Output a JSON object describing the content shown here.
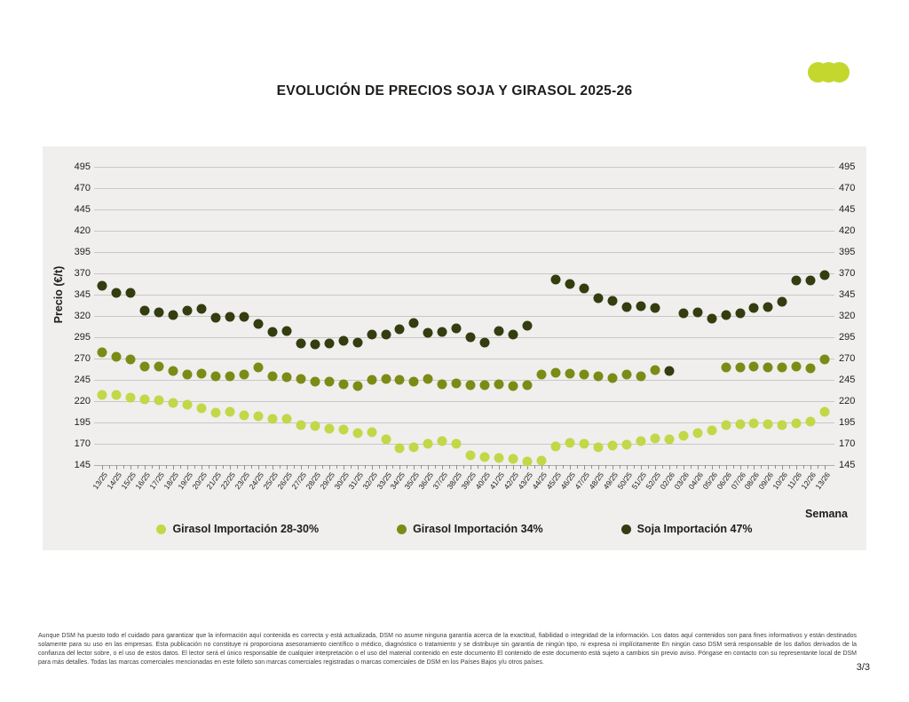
{
  "page": {
    "title": "EVOLUCIÓN DE PRECIOS SOJA Y GIRASOL 2025-26",
    "page_number": "3/3",
    "footer": "Aunque DSM ha puesto todo el cuidado para garantizar que la información aquí contenida es correcta y está actualizada, DSM no asume ninguna garantía acerca de la exactitud, fiabilidad o integridad de la información. Los datos aquí contenidos son para fines informativos y están destinados solamente para su uso en las empresas. Esta publicación no constituye ni proporciona asesoramiento científico o médico, diagnóstico o tratamiento y se distribuye sin garantía de ningún tipo, ni expresa ni implícitamente En ningún caso DSM será responsable de los daños derivados de la confianza del lector sobre, o el uso de estos datos. El lector será el único responsable de cualquier interpretación o el uso del material contenido en este documento El contenido de este documento está sujeto a cambios sin previo aviso. Póngase en contacto con su representante local de DSM para más detalles. Todas las marcas comerciales mencionadas en este folleto son marcas comerciales registradas o marcas comerciales de DSM en los Países Bajos y/u otros países."
  },
  "logo": {
    "name": "three-dots-logo",
    "color": "#c3d72e"
  },
  "chart_data": {
    "type": "scatter",
    "title": "EVOLUCIÓN DE PRECIOS SOJA Y GIRASOL 2025-26",
    "xlabel": "Semana",
    "ylabel": "Precio (€/t)",
    "ylim": [
      145,
      495
    ],
    "ytick_step": 25,
    "grid": true,
    "legend_position": "bottom",
    "categories": [
      "13/25",
      "14/25",
      "15/25",
      "16/25",
      "17/25",
      "18/25",
      "19/25",
      "20/25",
      "21/25",
      "22/25",
      "23/25",
      "24/25",
      "25/25",
      "26/25",
      "27/25",
      "28/25",
      "29/25",
      "30/25",
      "31/25",
      "32/25",
      "33/25",
      "34/25",
      "35/25",
      "36/25",
      "37/25",
      "38/25",
      "39/25",
      "40/25",
      "41/25",
      "42/25",
      "43/25",
      "44/25",
      "45/25",
      "46/25",
      "47/25",
      "48/25",
      "49/25",
      "50/25",
      "51/25",
      "52/25",
      "02/26",
      "03/26",
      "04/26",
      "05/26",
      "06/26",
      "07/26",
      "08/26",
      "09/26",
      "10/26",
      "11/26",
      "12/26",
      "13/26"
    ],
    "series": [
      {
        "key": "girasol-28-30",
        "name": "Girasol Importación 28-30%",
        "color": "#c3d748",
        "values": [
          227,
          227,
          224,
          222,
          221,
          218,
          216,
          212,
          206,
          207,
          203,
          202,
          199,
          199,
          192,
          191,
          188,
          187,
          183,
          184,
          175,
          165,
          166,
          170,
          173,
          170,
          156,
          154,
          153,
          152,
          149,
          150,
          167,
          171,
          170,
          166,
          168,
          169,
          173,
          176,
          175,
          179,
          182,
          186,
          192,
          193,
          194,
          193,
          192,
          194,
          196,
          207
        ]
      },
      {
        "key": "girasol-34",
        "name": "Girasol Importación 34%",
        "color": "#7c8b16",
        "values": [
          277,
          272,
          269,
          261,
          261,
          255,
          251,
          252,
          249,
          249,
          251,
          260,
          249,
          248,
          246,
          243,
          243,
          240,
          238,
          245,
          246,
          245,
          243,
          246,
          240,
          241,
          239,
          239,
          240,
          238,
          239,
          251,
          253,
          252,
          251,
          249,
          247,
          251,
          249,
          256,
          null,
          null,
          null,
          null,
          260,
          260,
          261,
          260,
          260,
          261,
          259,
          269
        ]
      },
      {
        "key": "soja-47",
        "name": "Soja Importación 47%",
        "color": "#333d10",
        "values": [
          355,
          347,
          347,
          326,
          324,
          321,
          326,
          328,
          318,
          319,
          319,
          311,
          301,
          302,
          288,
          287,
          288,
          291,
          289,
          298,
          298,
          304,
          312,
          300,
          301,
          305,
          295,
          289,
          302,
          298,
          309,
          null,
          363,
          358,
          352,
          341,
          338,
          330,
          331,
          329,
          255,
          323,
          324,
          317,
          321,
          323,
          329,
          330,
          337,
          362,
          362,
          368
        ]
      }
    ]
  }
}
